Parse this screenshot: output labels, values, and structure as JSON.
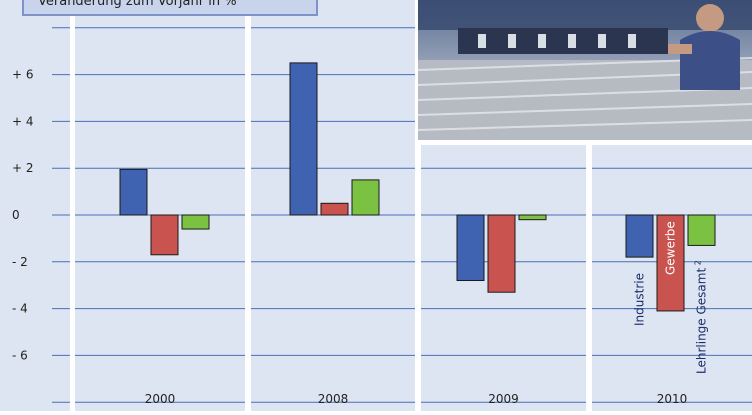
{
  "caption": "Veränderung zum Vorjahr in %",
  "colors": {
    "panel": "#dde5f2",
    "grid": "#4a6fb5",
    "industrie": "#3f63b0",
    "gewerbe": "#c9544f",
    "lehrlinge": "#7cc242",
    "label_text": "#1c2d6b"
  },
  "chart_data": {
    "type": "bar",
    "categories": [
      "2000",
      "2008",
      "2009",
      "2010"
    ],
    "series": [
      {
        "name": "Industrie",
        "values": [
          1.95,
          6.5,
          -2.8,
          -1.8
        ]
      },
      {
        "name": "Gewerbe",
        "values": [
          -1.7,
          0.5,
          -3.3,
          -4.1
        ]
      },
      {
        "name": "Lehrlinge Gesamt",
        "values": [
          -0.6,
          1.5,
          -0.2,
          -1.3
        ]
      }
    ],
    "y_ticks": [
      "- 6",
      "- 4",
      "- 2",
      "0",
      "+ 2",
      "+ 4",
      "+ 6"
    ],
    "y_tick_values": [
      -6,
      -4,
      -2,
      0,
      2,
      4,
      6
    ],
    "ylim": [
      -8,
      8
    ],
    "legend_superscript": "2",
    "legend_placement": "inside bars of 2010"
  },
  "photo": {
    "description_icon": "factory-worker-photo"
  }
}
